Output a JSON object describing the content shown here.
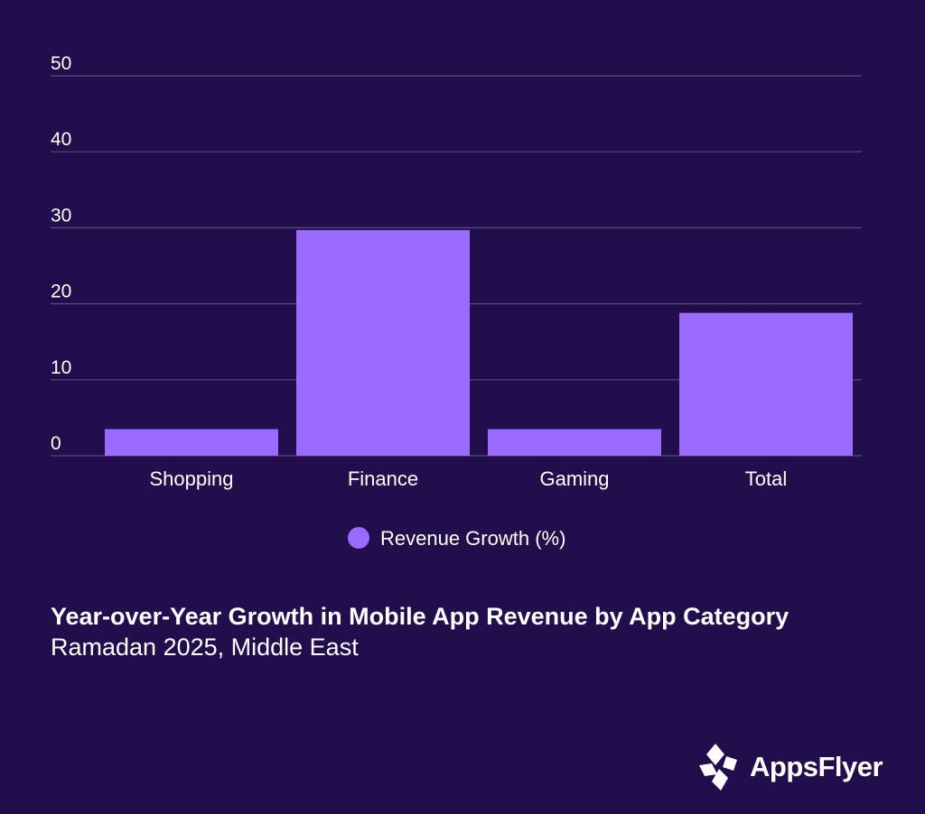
{
  "chart_data": {
    "type": "bar",
    "categories": [
      "Shopping",
      "Finance",
      "Gaming",
      "Total"
    ],
    "series": [
      {
        "name": "Revenue Growth (%)",
        "values": [
          3.5,
          29.7,
          3.5,
          18.8
        ],
        "color": "#9b6bff"
      }
    ],
    "title": "Year-over-Year Growth in Mobile App Revenue by App Category",
    "subtitle": "Ramadan 2025, Middle East",
    "xlabel": "",
    "ylabel": "",
    "ylim": [
      0,
      50
    ],
    "yticks": [
      0,
      10,
      20,
      30,
      40,
      50
    ],
    "grid": true,
    "legend_position": "bottom-center"
  },
  "colors": {
    "background": "#220e4c",
    "bar": "#9b6bff",
    "grid": "#5a4a7e",
    "text": "#ffffff"
  },
  "brand": {
    "logo_text": "AppsFlyer",
    "logo_icon": "appsflyer-logo-icon"
  }
}
